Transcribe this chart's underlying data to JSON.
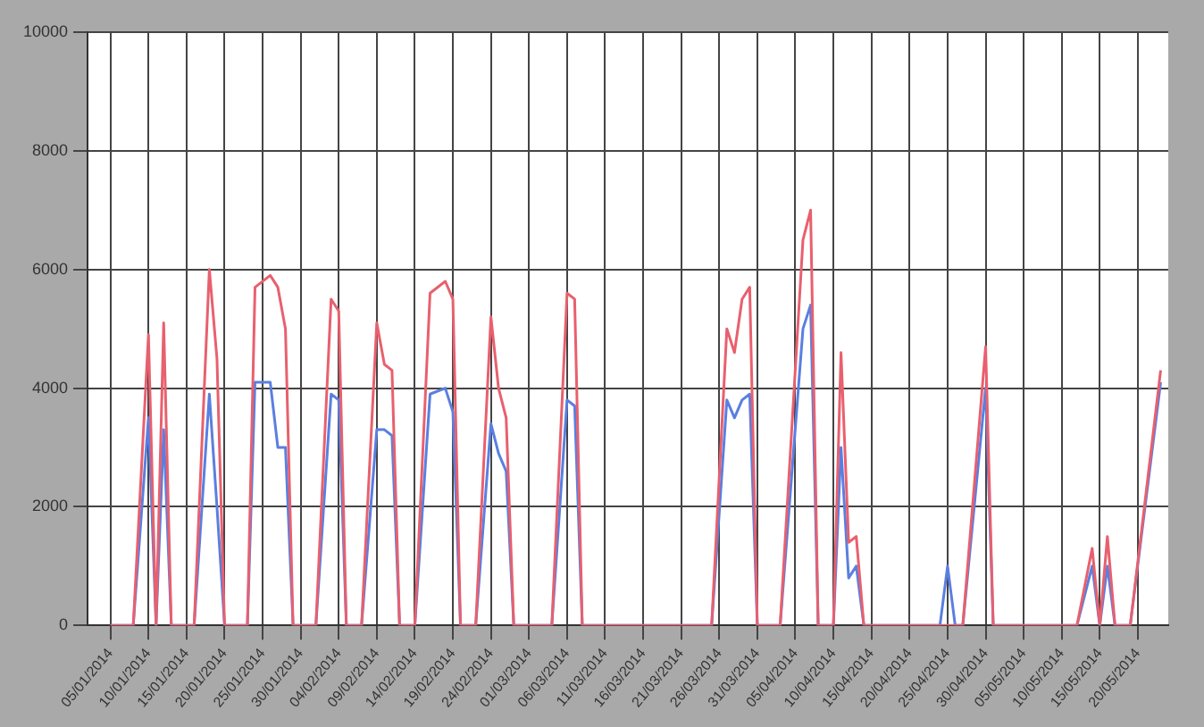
{
  "chart_data": {
    "type": "line",
    "grid": true,
    "legend": false,
    "marker": "none",
    "line_style": "solid",
    "xlim": [
      "2014-01-02",
      "2014-05-24"
    ],
    "xticks": [
      {
        "value": "2014-01-05",
        "label": "05/01/2014"
      },
      {
        "value": "2014-01-10",
        "label": "10/01/2014"
      },
      {
        "value": "2014-01-15",
        "label": "15/01/2014"
      },
      {
        "value": "2014-01-20",
        "label": "20/01/2014"
      },
      {
        "value": "2014-01-25",
        "label": "25/01/2014"
      },
      {
        "value": "2014-01-30",
        "label": "30/01/2014"
      },
      {
        "value": "2014-02-04",
        "label": "04/02/2014"
      },
      {
        "value": "2014-02-09",
        "label": "09/02/2014"
      },
      {
        "value": "2014-02-14",
        "label": "14/02/2014"
      },
      {
        "value": "2014-02-19",
        "label": "19/02/2014"
      },
      {
        "value": "2014-02-24",
        "label": "24/02/2014"
      },
      {
        "value": "2014-03-01",
        "label": "01/03/2014"
      },
      {
        "value": "2014-03-06",
        "label": "06/03/2014"
      },
      {
        "value": "2014-03-11",
        "label": "11/03/2014"
      },
      {
        "value": "2014-03-16",
        "label": "16/03/2014"
      },
      {
        "value": "2014-03-21",
        "label": "21/03/2014"
      },
      {
        "value": "2014-03-26",
        "label": "26/03/2014"
      },
      {
        "value": "2014-03-31",
        "label": "31/03/2014"
      },
      {
        "value": "2014-04-05",
        "label": "05/04/2014"
      },
      {
        "value": "2014-04-10",
        "label": "10/04/2014"
      },
      {
        "value": "2014-04-15",
        "label": "15/04/2014"
      },
      {
        "value": "2014-04-20",
        "label": "20/04/2014"
      },
      {
        "value": "2014-04-25",
        "label": "25/04/2014"
      },
      {
        "value": "2014-04-30",
        "label": "30/04/2014"
      },
      {
        "value": "2014-05-05",
        "label": "05/05/2014"
      },
      {
        "value": "2014-05-10",
        "label": "10/05/2014"
      },
      {
        "value": "2014-05-15",
        "label": "15/05/2014"
      },
      {
        "value": "2014-05-20",
        "label": "20/05/2014"
      }
    ],
    "ylim": [
      0,
      10000
    ],
    "yticks": [
      0,
      2000,
      4000,
      6000,
      8000,
      10000
    ],
    "series": [
      {
        "color": "#e8606e",
        "x": [
          "2014-01-05",
          "2014-01-08",
          "2014-01-10",
          "2014-01-11",
          "2014-01-12",
          "2014-01-13",
          "2014-01-16",
          "2014-01-18",
          "2014-01-19",
          "2014-01-20",
          "2014-01-23",
          "2014-01-24",
          "2014-01-26",
          "2014-01-27",
          "2014-01-28",
          "2014-01-29",
          "2014-02-01",
          "2014-02-03",
          "2014-02-04",
          "2014-02-05",
          "2014-02-07",
          "2014-02-09",
          "2014-02-10",
          "2014-02-11",
          "2014-02-12",
          "2014-02-14",
          "2014-02-16",
          "2014-02-18",
          "2014-02-19",
          "2014-02-20",
          "2014-02-22",
          "2014-02-24",
          "2014-02-25",
          "2014-02-26",
          "2014-02-27",
          "2014-03-04",
          "2014-03-06",
          "2014-03-07",
          "2014-03-08",
          "2014-03-25",
          "2014-03-27",
          "2014-03-28",
          "2014-03-29",
          "2014-03-30",
          "2014-03-31",
          "2014-04-03",
          "2014-04-06",
          "2014-04-07",
          "2014-04-08",
          "2014-04-10",
          "2014-04-11",
          "2014-04-12",
          "2014-04-13",
          "2014-04-14",
          "2014-04-27",
          "2014-04-30",
          "2014-05-01",
          "2014-05-12",
          "2014-05-14",
          "2014-05-15",
          "2014-05-16",
          "2014-05-17",
          "2014-05-19",
          "2014-05-23"
        ],
        "values": [
          0,
          0,
          4900,
          0,
          5100,
          0,
          0,
          6000,
          4500,
          0,
          0,
          5700,
          5900,
          5700,
          5000,
          0,
          0,
          5500,
          5300,
          0,
          0,
          5100,
          4400,
          4300,
          0,
          0,
          5600,
          5800,
          5500,
          0,
          0,
          5200,
          4000,
          3500,
          0,
          0,
          5600,
          5500,
          0,
          0,
          5000,
          4600,
          5500,
          5700,
          0,
          0,
          6500,
          7000,
          0,
          0,
          4600,
          1400,
          1500,
          0,
          0,
          4700,
          0,
          0,
          1300,
          0,
          1500,
          0,
          0,
          4300
        ]
      },
      {
        "color": "#5a7fe0",
        "x": [
          "2014-01-05",
          "2014-01-08",
          "2014-01-10",
          "2014-01-11",
          "2014-01-12",
          "2014-01-13",
          "2014-01-16",
          "2014-01-18",
          "2014-01-19",
          "2014-01-20",
          "2014-01-23",
          "2014-01-24",
          "2014-01-26",
          "2014-01-27",
          "2014-01-28",
          "2014-01-29",
          "2014-02-01",
          "2014-02-03",
          "2014-02-04",
          "2014-02-05",
          "2014-02-07",
          "2014-02-09",
          "2014-02-10",
          "2014-02-11",
          "2014-02-12",
          "2014-02-14",
          "2014-02-16",
          "2014-02-18",
          "2014-02-19",
          "2014-02-20",
          "2014-02-22",
          "2014-02-24",
          "2014-02-25",
          "2014-02-26",
          "2014-02-27",
          "2014-03-04",
          "2014-03-06",
          "2014-03-07",
          "2014-03-08",
          "2014-03-25",
          "2014-03-27",
          "2014-03-28",
          "2014-03-29",
          "2014-03-30",
          "2014-03-31",
          "2014-04-03",
          "2014-04-06",
          "2014-04-07",
          "2014-04-08",
          "2014-04-10",
          "2014-04-11",
          "2014-04-12",
          "2014-04-13",
          "2014-04-14",
          "2014-04-24",
          "2014-04-25",
          "2014-04-26",
          "2014-04-27",
          "2014-04-30",
          "2014-05-01",
          "2014-05-12",
          "2014-05-14",
          "2014-05-15",
          "2014-05-16",
          "2014-05-17",
          "2014-05-19",
          "2014-05-23"
        ],
        "values": [
          0,
          0,
          3500,
          0,
          3300,
          0,
          0,
          3900,
          2000,
          0,
          0,
          4100,
          4100,
          3000,
          3000,
          0,
          0,
          3900,
          3800,
          0,
          0,
          3300,
          3300,
          3200,
          0,
          0,
          3900,
          4000,
          3600,
          0,
          0,
          3400,
          2900,
          2600,
          0,
          0,
          3800,
          3700,
          0,
          0,
          3800,
          3500,
          3800,
          3900,
          0,
          0,
          5000,
          5400,
          0,
          0,
          3000,
          800,
          1000,
          0,
          0,
          1000,
          0,
          0,
          4000,
          0,
          0,
          1000,
          0,
          1000,
          0,
          0,
          4100
        ]
      }
    ]
  }
}
